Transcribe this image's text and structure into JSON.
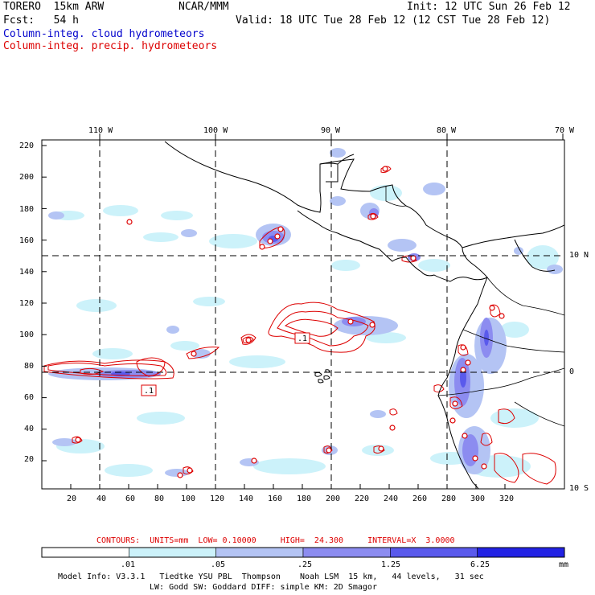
{
  "header": {
    "model": "TORERO  15km ARW",
    "org": "NCAR/MMM",
    "init": "Init: 12 UTC Sun 26 Feb 12",
    "fcst": "Fcst:   54 h",
    "valid": "Valid: 18 UTC Tue 28 Feb 12 (12 CST Tue 28 Feb 12)",
    "legend_cloud": "Column-integ. cloud hydrometeors",
    "legend_precip": "Column-integ. precip. hydrometeors",
    "legend_cloud_color": "#0000cc",
    "legend_precip_color": "#dd0000"
  },
  "map": {
    "lon_labels": [
      "110 W",
      "100 W",
      "90 W",
      "80 W",
      "70 W"
    ],
    "lat_labels": [
      "10 N",
      "0",
      "10 S"
    ],
    "y_ticks": [
      "220",
      "200",
      "180",
      "160",
      "140",
      "120",
      "100",
      "80",
      "60",
      "40",
      "20"
    ],
    "x_ticks": [
      "20",
      "40",
      "60",
      "80",
      "100",
      "120",
      "140",
      "160",
      "180",
      "200",
      "220",
      "240",
      "260",
      "280",
      "300",
      "320"
    ],
    "contour_labels": [
      ".1",
      ".1"
    ]
  },
  "contours": {
    "text": "CONTOURS:  UNITS=mm  LOW= 0.10000     HIGH=  24.300     INTERVAL=X  3.0000",
    "color": "#dd0000"
  },
  "colorbar": {
    "labels": [
      ".01",
      ".05",
      ".25",
      "1.25",
      "6.25"
    ],
    "unit": "mm",
    "colors": [
      "#ffffff",
      "#ccf2fa",
      "#b4c4f4",
      "#8c8cf0",
      "#5a5aec",
      "#2222e4"
    ]
  },
  "footer": {
    "line1": "Model Info: V3.3.1   Tiedtke YSU PBL  Thompson    Noah LSM  15 km,   44 levels,   31 sec",
    "line2": "LW: Godd SW: Goddard DIFF: simple KM: 2D Smagor"
  }
}
